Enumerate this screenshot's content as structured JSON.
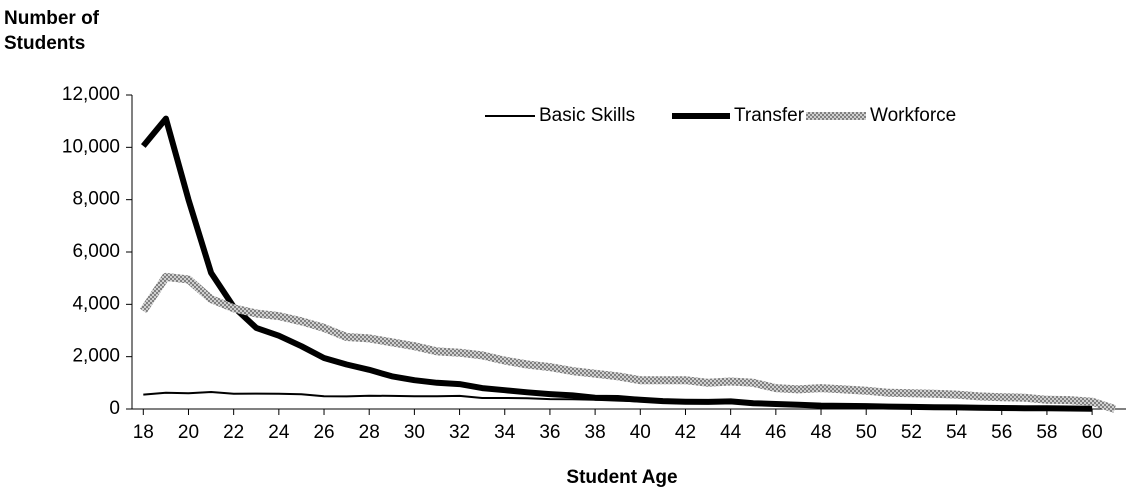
{
  "chart_data": {
    "type": "line",
    "y_label": "Number of Students",
    "x_label": "Student Age",
    "x": [
      18,
      19,
      20,
      21,
      22,
      23,
      24,
      25,
      26,
      27,
      28,
      29,
      30,
      31,
      32,
      33,
      34,
      35,
      36,
      37,
      38,
      39,
      40,
      41,
      42,
      43,
      44,
      45,
      46,
      47,
      48,
      49,
      50,
      51,
      52,
      53,
      54,
      55,
      56,
      57,
      58,
      59,
      60,
      61
    ],
    "xlim": [
      17.5,
      61.5
    ],
    "xticks": [
      18,
      20,
      22,
      24,
      26,
      28,
      30,
      32,
      34,
      36,
      38,
      40,
      42,
      44,
      46,
      48,
      50,
      52,
      54,
      56,
      58,
      60
    ],
    "ylim": [
      0,
      12000
    ],
    "yticks": [
      0,
      {
        "value": 2000,
        "label": "2,000"
      },
      {
        "value": 4000,
        "label": "4,000"
      },
      {
        "value": 6000,
        "label": "6,000"
      },
      {
        "value": 8000,
        "label": "8,000"
      },
      {
        "value": 10000,
        "label": "10,000"
      },
      {
        "value": 12000,
        "label": "12,000"
      }
    ],
    "legend": "top",
    "series": [
      {
        "name": "Basic Skills",
        "color": "#000000",
        "width": 2,
        "values": [
          550,
          620,
          600,
          650,
          580,
          590,
          580,
          560,
          490,
          480,
          510,
          500,
          490,
          490,
          500,
          420,
          420,
          410,
          380,
          370,
          350,
          320,
          290,
          260,
          240,
          230,
          230,
          200,
          180,
          160,
          150,
          140,
          130,
          110,
          100,
          90,
          80,
          70,
          60,
          50,
          40,
          30,
          20,
          null
        ]
      },
      {
        "name": "Transfer",
        "color": "#000000",
        "width": 6,
        "values": [
          10050,
          11100,
          8000,
          5200,
          3900,
          3100,
          2800,
          2400,
          1950,
          1700,
          1500,
          1250,
          1100,
          1000,
          950,
          800,
          720,
          640,
          570,
          520,
          430,
          420,
          350,
          300,
          280,
          270,
          290,
          220,
          190,
          160,
          130,
          120,
          110,
          90,
          80,
          70,
          60,
          50,
          40,
          30,
          25,
          20,
          10,
          null
        ]
      },
      {
        "name": "Workforce",
        "color": "#a6a6a6",
        "width": 8,
        "values": [
          3750,
          5050,
          4950,
          4200,
          3850,
          3650,
          3550,
          3350,
          3100,
          2750,
          2700,
          2550,
          2400,
          2200,
          2150,
          2050,
          1850,
          1700,
          1600,
          1450,
          1350,
          1250,
          1100,
          1100,
          1100,
          1000,
          1050,
          1000,
          800,
          750,
          800,
          750,
          700,
          620,
          600,
          580,
          550,
          480,
          450,
          430,
          350,
          340,
          280,
          0
        ]
      }
    ]
  }
}
